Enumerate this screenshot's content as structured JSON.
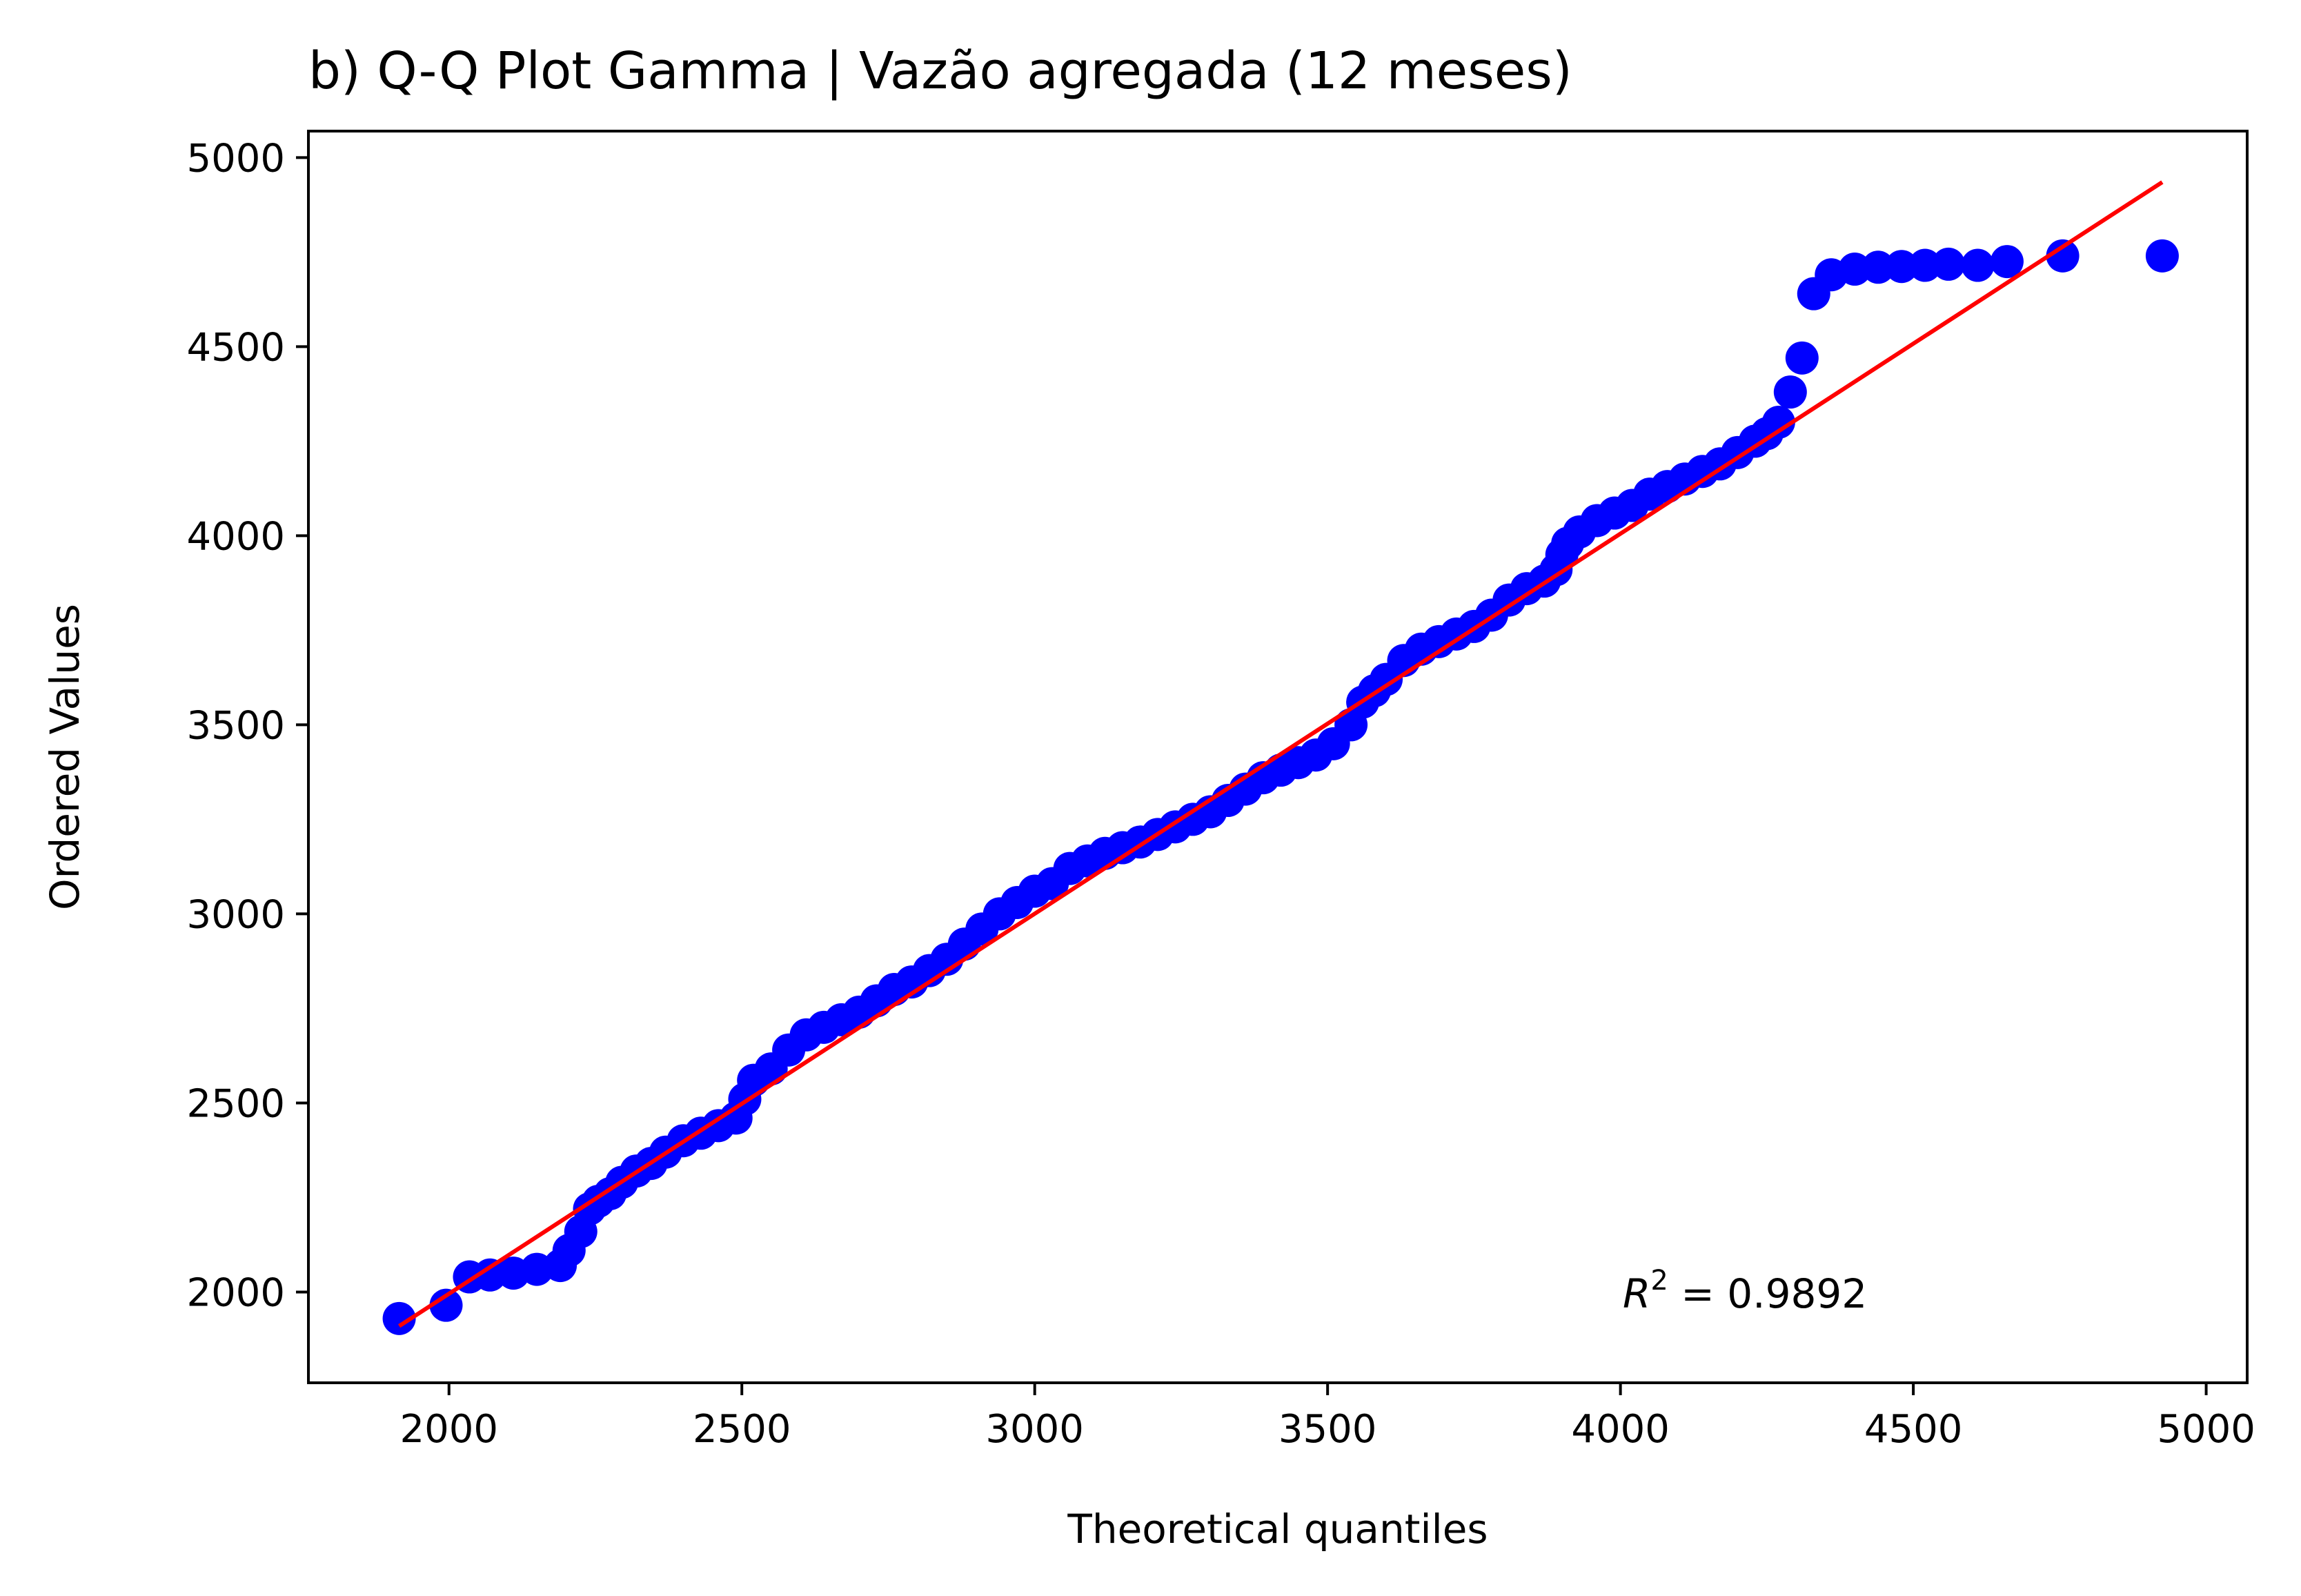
{
  "chart_data": {
    "type": "scatter",
    "title": "b) Q-Q Plot Gamma | Vazão agregada (12 meses)",
    "xlabel": "Theoretical quantiles",
    "ylabel": "Ordered Values",
    "xlim": [
      1760,
      5070
    ],
    "ylim": [
      1760,
      5070
    ],
    "xticks": [
      2000,
      2500,
      3000,
      3500,
      4000,
      4500,
      5000
    ],
    "yticks": [
      2000,
      2500,
      3000,
      3500,
      4000,
      4500,
      5000
    ],
    "xtick_labels": [
      "2000",
      "2500",
      "3000",
      "3500",
      "4000",
      "4500",
      "5000"
    ],
    "ytick_labels": [
      "2000",
      "2500",
      "3000",
      "3500",
      "4000",
      "4500",
      "5000"
    ],
    "grid": false,
    "colors": {
      "points": "#0000ff",
      "fit_line": "#ff0000"
    },
    "series": [
      {
        "type": "scatter",
        "x": [
          1915,
          1995,
          2035,
          2070,
          2110,
          2150,
          2190,
          2205,
          2225,
          2240,
          2255,
          2275,
          2295,
          2320,
          2345,
          2370,
          2400,
          2430,
          2460,
          2490,
          2505,
          2520,
          2550,
          2580,
          2610,
          2640,
          2670,
          2700,
          2730,
          2760,
          2790,
          2820,
          2850,
          2880,
          2910,
          2940,
          2970,
          3000,
          3030,
          3060,
          3090,
          3120,
          3150,
          3180,
          3210,
          3240,
          3270,
          3300,
          3330,
          3360,
          3390,
          3420,
          3450,
          3480,
          3510,
          3540,
          3560,
          3580,
          3600,
          3630,
          3660,
          3690,
          3720,
          3750,
          3780,
          3810,
          3840,
          3870,
          3890,
          3900,
          3910,
          3930,
          3960,
          3990,
          4020,
          4050,
          4080,
          4110,
          4140,
          4170,
          4200,
          4230,
          4250,
          4270,
          4290,
          4310,
          4330,
          4360,
          4400,
          4440,
          4480,
          4520,
          4560,
          4610,
          4660,
          4755,
          4925
        ],
        "y": [
          1930,
          1965,
          2040,
          2045,
          2050,
          2060,
          2070,
          2110,
          2160,
          2220,
          2240,
          2260,
          2290,
          2320,
          2340,
          2370,
          2400,
          2420,
          2440,
          2460,
          2510,
          2560,
          2590,
          2640,
          2680,
          2700,
          2720,
          2740,
          2770,
          2800,
          2820,
          2850,
          2880,
          2920,
          2960,
          3000,
          3030,
          3060,
          3080,
          3120,
          3140,
          3160,
          3175,
          3190,
          3210,
          3230,
          3250,
          3270,
          3300,
          3330,
          3360,
          3380,
          3400,
          3420,
          3450,
          3500,
          3560,
          3590,
          3620,
          3670,
          3700,
          3720,
          3740,
          3760,
          3790,
          3830,
          3860,
          3880,
          3910,
          3950,
          3980,
          4010,
          4040,
          4060,
          4080,
          4110,
          4130,
          4150,
          4170,
          4190,
          4220,
          4250,
          4270,
          4300,
          4380,
          4470,
          4640,
          4690,
          4705,
          4710,
          4712,
          4715,
          4718,
          4715,
          4725,
          4740,
          4740
        ]
      },
      {
        "type": "line",
        "x": [
          1915,
          4925
        ],
        "y": [
          1910,
          4935
        ]
      }
    ],
    "annotations": [
      {
        "text_italic": "R",
        "superscript": "2",
        "text": " = 0.9892"
      }
    ]
  }
}
